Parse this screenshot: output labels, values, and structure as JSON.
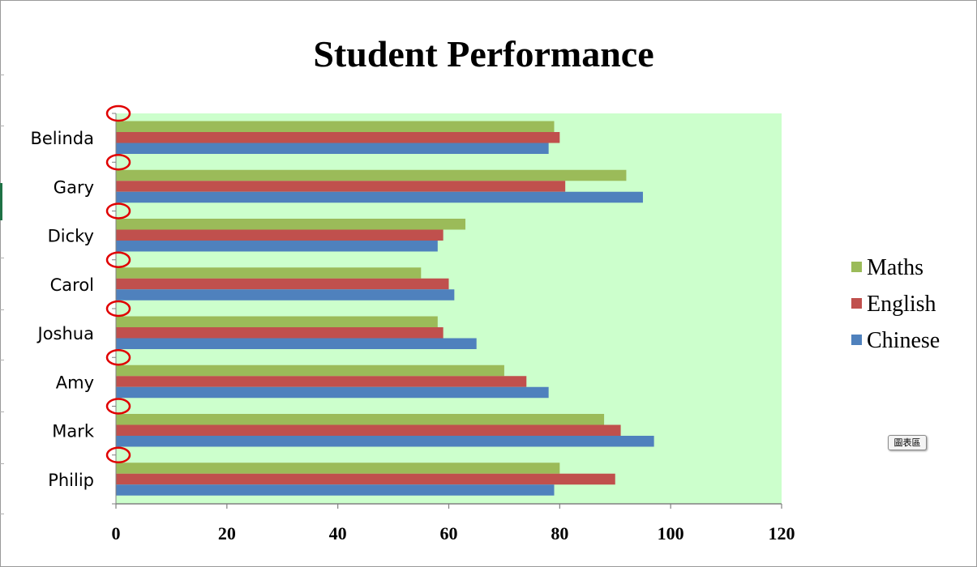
{
  "chart_data": {
    "type": "bar",
    "orientation": "horizontal",
    "title": "Student Performance",
    "categories": [
      "Belinda",
      "Gary",
      "Dicky",
      "Carol",
      "Joshua",
      "Amy",
      "Mark",
      "Philip"
    ],
    "series": [
      {
        "name": "Maths",
        "color": "#9bbb59",
        "values": [
          79,
          92,
          63,
          55,
          58,
          70,
          88,
          80
        ]
      },
      {
        "name": "English",
        "color": "#c0504d",
        "values": [
          80,
          81,
          59,
          60,
          59,
          74,
          91,
          90
        ]
      },
      {
        "name": "Chinese",
        "color": "#4f81bd",
        "values": [
          78,
          95,
          58,
          61,
          65,
          78,
          97,
          79
        ]
      }
    ],
    "xlim": [
      0,
      120
    ],
    "xticks": [
      "0",
      "20",
      "40",
      "60",
      "80",
      "100",
      "120"
    ],
    "xlabel": "",
    "ylabel": "",
    "plot_background": "#ccffcc",
    "grid": false,
    "legend": "right",
    "annotations": "red ellipses circle each category tick mark on the vertical axis"
  },
  "tooltip": "圖表區"
}
